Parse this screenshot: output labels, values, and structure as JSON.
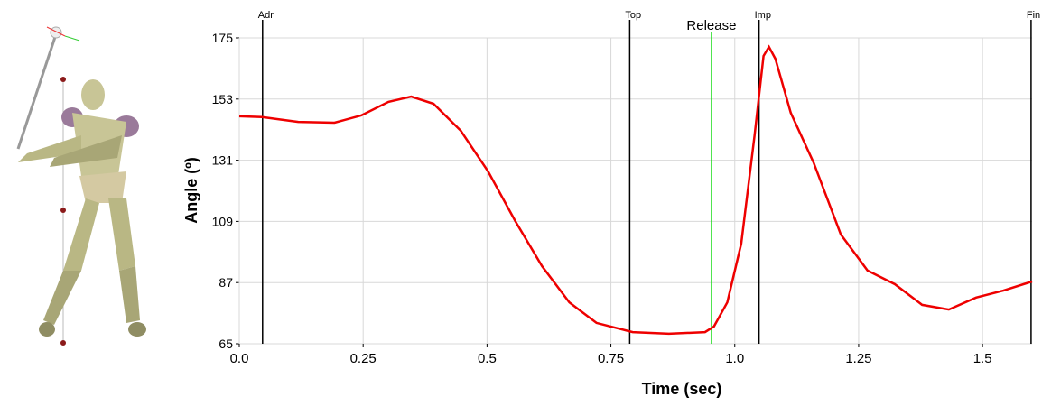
{
  "chart_data": {
    "type": "line",
    "x_label": "Time (sec)",
    "y_label": "Angle (º)",
    "x": [
      0,
      0.046,
      0.119,
      0.192,
      0.246,
      0.301,
      0.347,
      0.392,
      0.447,
      0.502,
      0.557,
      0.611,
      0.666,
      0.721,
      0.794,
      0.867,
      0.94,
      0.958,
      0.985,
      1.013,
      1.04,
      1.058,
      1.069,
      1.082,
      1.113,
      1.159,
      1.214,
      1.268,
      1.323,
      1.378,
      1.432,
      1.487,
      1.542,
      1.6
    ],
    "values": [
      146.8,
      146.5,
      144.8,
      144.5,
      147.1,
      152,
      153.9,
      151.3,
      141.6,
      127,
      109.1,
      92.9,
      79.9,
      72.5,
      69.2,
      68.6,
      69.2,
      71.2,
      79.9,
      101,
      140,
      168.5,
      171.8,
      167.5,
      148,
      130.2,
      104.3,
      91.3,
      86.4,
      79,
      77.3,
      81.6,
      84.1,
      87.4
    ],
    "color": "#ee0000",
    "xlim": [
      0,
      1.6
    ],
    "ylim": [
      65,
      175
    ],
    "xticks": [
      {
        "value": 0,
        "label": "0.0"
      },
      0.25,
      0.5,
      0.75,
      {
        "value": 1,
        "label": "1.0"
      },
      1.25,
      1.5
    ],
    "yticks": [
      65,
      87,
      109,
      131,
      153,
      175
    ],
    "grid": true,
    "events": [
      {
        "label": "Adr",
        "x": 0.047,
        "color": "#000000"
      },
      {
        "label": "Top",
        "x": 0.788,
        "color": "#000000"
      },
      {
        "label": "Release",
        "x": 0.953,
        "color": "#22dd22"
      },
      {
        "label": "Imp",
        "x": 1.049,
        "color": "#000000"
      },
      {
        "label": "Fin",
        "x": 1.598,
        "color": "#000000"
      }
    ]
  }
}
